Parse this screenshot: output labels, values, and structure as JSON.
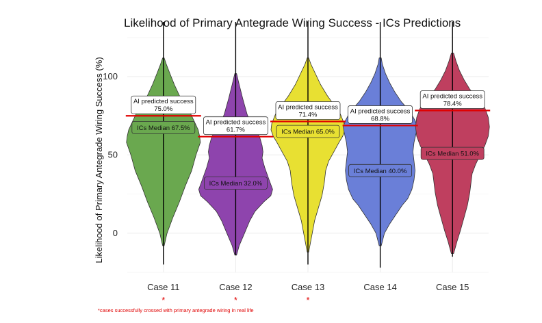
{
  "chart_data": {
    "type": "violin",
    "title": "Likelihood of Primary Antegrade Wiring Success - ICs Predictions",
    "xlabel": "",
    "ylabel": "Likelihood of Primary Antegrade Wiring Success (%)",
    "ylim": [
      -25,
      128
    ],
    "yticks": [
      0,
      50,
      100
    ],
    "grid": true,
    "categories": [
      "Case 11",
      "Case 12",
      "Case 13",
      "Case 14",
      "Case 15"
    ],
    "series": [
      {
        "category": "Case 11",
        "color": "#6aa84f",
        "ai_label": "AI predicted success",
        "ai_value_label": "75.0%",
        "ai_value": 75.0,
        "median_label": "ICs Median 67.5%",
        "median": 67.5,
        "range": [
          -20,
          135
        ],
        "violin_extent": [
          -8,
          112
        ],
        "starred": true,
        "density": [
          [
            -8,
            1
          ],
          [
            0,
            5
          ],
          [
            10,
            13
          ],
          [
            20,
            22
          ],
          [
            30,
            30
          ],
          [
            40,
            39
          ],
          [
            50,
            45
          ],
          [
            58,
            51
          ],
          [
            62,
            50
          ],
          [
            66,
            48
          ],
          [
            70,
            44
          ],
          [
            76,
            38
          ],
          [
            82,
            30
          ],
          [
            88,
            22
          ],
          [
            95,
            15
          ],
          [
            102,
            9
          ],
          [
            108,
            4
          ],
          [
            112,
            1
          ]
        ]
      },
      {
        "category": "Case 12",
        "color": "#8e44ad",
        "ai_label": "AI predicted success",
        "ai_value_label": "61.7%",
        "ai_value": 61.7,
        "median_label": "ICs Median 32.0%",
        "median": 32.0,
        "range": [
          -14,
          135
        ],
        "violin_extent": [
          -14,
          102
        ],
        "starred": true,
        "density": [
          [
            -14,
            1
          ],
          [
            -8,
            4
          ],
          [
            0,
            10
          ],
          [
            8,
            16
          ],
          [
            14,
            22
          ],
          [
            20,
            32
          ],
          [
            24,
            40
          ],
          [
            28,
            42
          ],
          [
            34,
            38
          ],
          [
            42,
            33
          ],
          [
            48,
            30
          ],
          [
            52,
            31
          ],
          [
            56,
            30
          ],
          [
            62,
            27
          ],
          [
            68,
            19
          ],
          [
            76,
            13
          ],
          [
            86,
            8
          ],
          [
            95,
            4
          ],
          [
            102,
            1
          ]
        ]
      },
      {
        "category": "Case 13",
        "color": "#e8e032",
        "ai_label": "AI predicted success",
        "ai_value_label": "71.4%",
        "ai_value": 71.4,
        "median_label": "ICs Median 65.0%",
        "median": 65.0,
        "range": [
          -20,
          135
        ],
        "violin_extent": [
          -12,
          112
        ],
        "starred": true,
        "density": [
          [
            -12,
            1
          ],
          [
            -2,
            5
          ],
          [
            8,
            9
          ],
          [
            16,
            14
          ],
          [
            24,
            19
          ],
          [
            32,
            22
          ],
          [
            40,
            24
          ],
          [
            46,
            28
          ],
          [
            52,
            35
          ],
          [
            58,
            42
          ],
          [
            62,
            47
          ],
          [
            66,
            50
          ],
          [
            70,
            49
          ],
          [
            76,
            44
          ],
          [
            82,
            35
          ],
          [
            88,
            26
          ],
          [
            95,
            17
          ],
          [
            102,
            10
          ],
          [
            108,
            4
          ],
          [
            112,
            1
          ]
        ]
      },
      {
        "category": "Case 14",
        "color": "#6a7fd8",
        "ai_label": "AI predicted success",
        "ai_value_label": "68.8%",
        "ai_value": 68.8,
        "median_label": "ICs Median 40.0%",
        "median": 40.0,
        "range": [
          -22,
          135
        ],
        "violin_extent": [
          -8,
          112
        ],
        "starred": false,
        "density": [
          [
            -8,
            1
          ],
          [
            0,
            4
          ],
          [
            6,
            9
          ],
          [
            12,
            15
          ],
          [
            18,
            21
          ],
          [
            22,
            26
          ],
          [
            28,
            30
          ],
          [
            34,
            32
          ],
          [
            40,
            33
          ],
          [
            46,
            32
          ],
          [
            52,
            31
          ],
          [
            58,
            32
          ],
          [
            64,
            34
          ],
          [
            68,
            35
          ],
          [
            72,
            33
          ],
          [
            78,
            28
          ],
          [
            84,
            20
          ],
          [
            90,
            14
          ],
          [
            96,
            9
          ],
          [
            102,
            5
          ],
          [
            108,
            2
          ],
          [
            112,
            1
          ]
        ]
      },
      {
        "category": "Case 15",
        "color": "#bf3f5f",
        "ai_label": "AI predicted success",
        "ai_value_label": "78.4%",
        "ai_value": 78.4,
        "median_label": "ICs Median 51.0%",
        "median": 51.0,
        "range": [
          -15,
          135
        ],
        "violin_extent": [
          -13,
          115
        ],
        "starred": false,
        "density": [
          [
            -13,
            1
          ],
          [
            -5,
            4
          ],
          [
            2,
            7
          ],
          [
            10,
            10
          ],
          [
            18,
            13
          ],
          [
            26,
            15
          ],
          [
            32,
            16
          ],
          [
            38,
            17
          ],
          [
            44,
            20
          ],
          [
            50,
            24
          ],
          [
            56,
            28
          ],
          [
            62,
            31
          ],
          [
            68,
            32
          ],
          [
            74,
            31
          ],
          [
            80,
            28
          ],
          [
            86,
            22
          ],
          [
            92,
            15
          ],
          [
            98,
            10
          ],
          [
            104,
            6
          ],
          [
            110,
            3
          ],
          [
            115,
            1
          ]
        ]
      }
    ],
    "footnote_marker": "*",
    "footnote": "*cases successfully crossed with primary antegrade wiring in real life"
  }
}
